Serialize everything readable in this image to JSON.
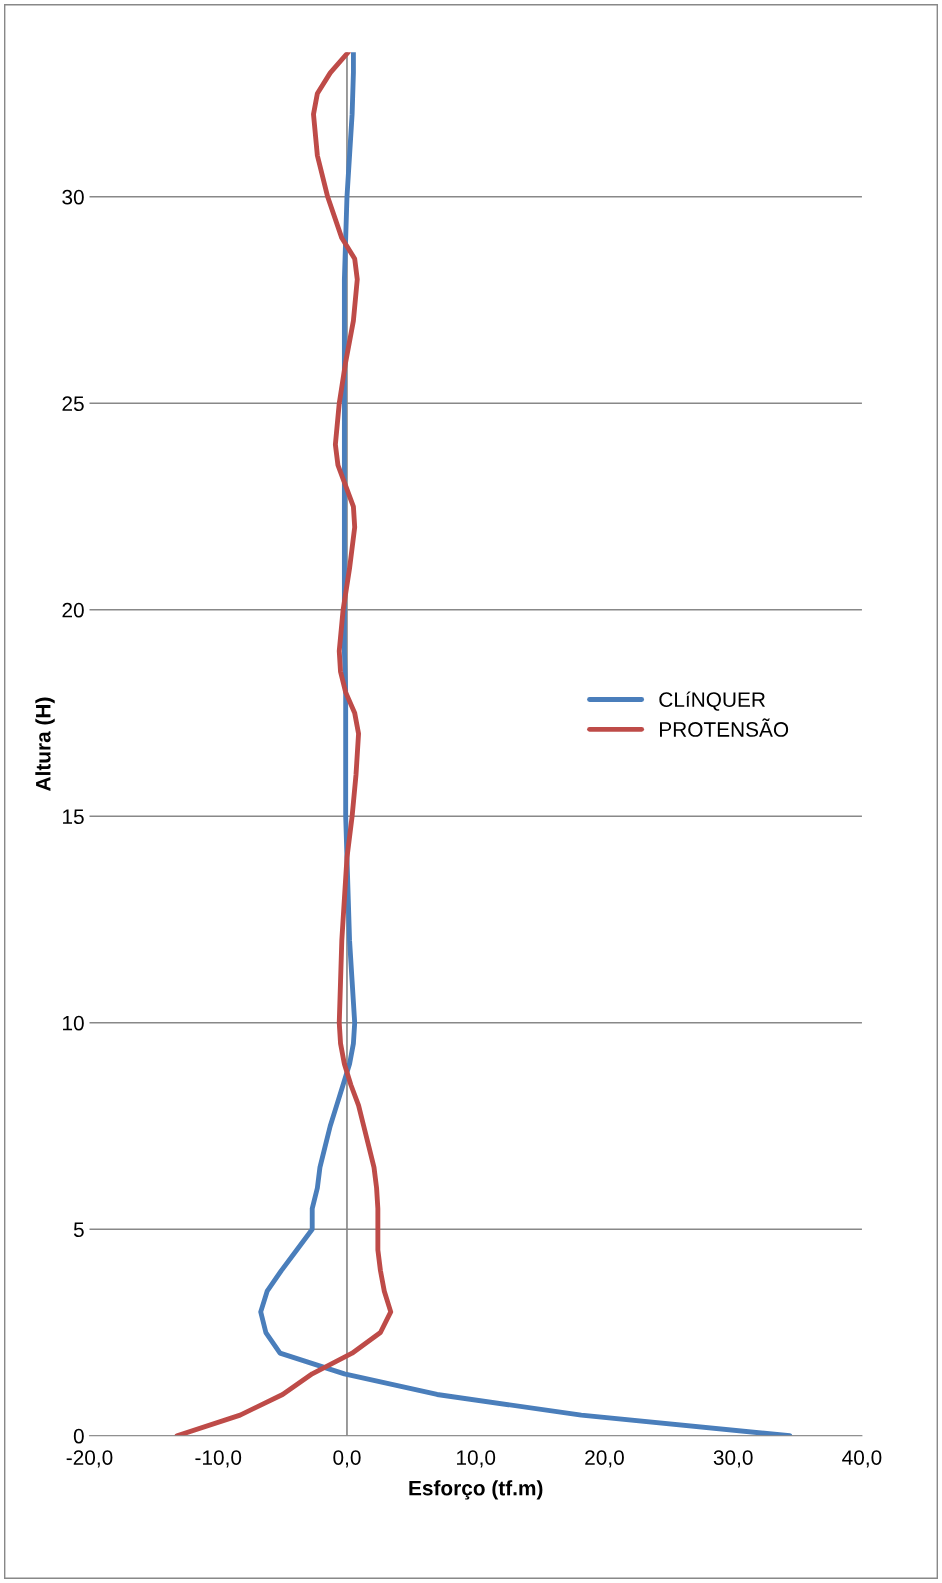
{
  "chart_data": {
    "type": "line",
    "xlabel": "Esforço (tf.m)",
    "ylabel": "Altura (H)",
    "xlim": [
      -20,
      40
    ],
    "xticks": [
      {
        "value": -20,
        "label": "-20,0"
      },
      {
        "value": -10,
        "label": "-10,0"
      },
      {
        "value": 0,
        "label": "0,0"
      },
      {
        "value": 10,
        "label": "10,0"
      },
      {
        "value": 20,
        "label": "20,0"
      },
      {
        "value": 30,
        "label": "30,0"
      },
      {
        "value": 40,
        "label": "40,0"
      }
    ],
    "ylim": [
      0,
      33.5
    ],
    "yticks": [
      0,
      5,
      10,
      15,
      20,
      25,
      30
    ],
    "grid": "y",
    "ref_lines": [
      {
        "axis": "x",
        "value": 0,
        "color": "#888888"
      }
    ],
    "legend": "right",
    "line_style": "solid",
    "marker": "none",
    "series": [
      {
        "name": "CLíNQUER",
        "color": "#4a7ebb",
        "x": [
          34.4,
          18.2,
          7.0,
          -0.2,
          -5.2,
          -6.3,
          -6.7,
          -6.2,
          -5.1,
          -3.9,
          -2.7,
          -2.7,
          -2.3,
          -2.1,
          -1.7,
          -1.3,
          -0.8,
          -0.3,
          0.2,
          0.5,
          0.6,
          0.5,
          0.4,
          0.2,
          0.1,
          0.0,
          -0.1,
          -0.1,
          -0.1,
          -0.1,
          -0.2,
          -0.2,
          -0.2,
          -0.2,
          -0.2,
          -0.2,
          -0.1,
          0.0,
          0.2,
          0.4,
          0.5,
          0.5
        ],
        "values": [
          0,
          0.5,
          1,
          1.5,
          2,
          2.5,
          3,
          3.5,
          4,
          4.5,
          5,
          5.5,
          6,
          6.5,
          7,
          7.5,
          8,
          8.5,
          9,
          9.5,
          10,
          10.5,
          11,
          12,
          13,
          14,
          15,
          16,
          17,
          18,
          19,
          20,
          22,
          24,
          26,
          28,
          29,
          30,
          31,
          32,
          33,
          33.5
        ]
      },
      {
        "name": "PROTENSÃO",
        "color": "#be4b48",
        "x": [
          -13.2,
          -8.3,
          -5.0,
          -2.7,
          0.4,
          2.6,
          3.4,
          2.9,
          2.6,
          2.4,
          2.4,
          2.4,
          2.3,
          2.1,
          1.7,
          1.3,
          0.9,
          0.3,
          -0.2,
          -0.5,
          -0.6,
          -0.5,
          -0.4,
          -0.2,
          0.0,
          0.4,
          0.7,
          0.9,
          0.6,
          -0.1,
          -0.5,
          -0.6,
          -0.3,
          0.2,
          0.6,
          0.5,
          -0.1,
          -0.7,
          -0.9,
          -0.6,
          -0.1,
          0.5,
          0.8,
          0.6,
          -0.4,
          -1.5,
          -2.3,
          -2.6,
          -2.3,
          -1.3,
          0.1
        ],
        "values": [
          0,
          0.5,
          1,
          1.5,
          2,
          2.5,
          3,
          3.5,
          4,
          4.5,
          5,
          5.5,
          6,
          6.5,
          7,
          7.5,
          8,
          8.5,
          9,
          9.5,
          10,
          11,
          12,
          13,
          14,
          15,
          16,
          17,
          17.5,
          18,
          18.5,
          19,
          20,
          21,
          22,
          22.5,
          23,
          23.5,
          24,
          25,
          26,
          27,
          28,
          28.5,
          29,
          30,
          31,
          32,
          32.5,
          33,
          33.5
        ]
      }
    ]
  }
}
